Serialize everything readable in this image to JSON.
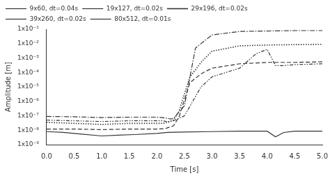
{
  "chart_data": {
    "type": "line",
    "log": "y",
    "x_label": "Time [s]",
    "y_label": "Amplitude [m]",
    "xlim": [
      0.0,
      5.0
    ],
    "ylim": [
      1e-09,
      0.1
    ],
    "xticks": [
      {
        "value": 0.0,
        "label": "0.0"
      },
      0.5,
      {
        "value": 1.0,
        "label": "1.0"
      },
      1.5,
      {
        "value": 2.0,
        "label": "2.0"
      },
      2.5,
      {
        "value": 3.0,
        "label": "3.0"
      },
      3.5,
      {
        "value": 4.0,
        "label": "4.0"
      },
      4.5,
      {
        "value": 5.0,
        "label": "5.0"
      }
    ],
    "yticks": [
      {
        "value": 1e-09,
        "label": "1x10⁻⁹"
      },
      {
        "value": 1e-08,
        "label": "1x10⁻⁸"
      },
      {
        "value": 1e-07,
        "label": "1x10⁻⁷"
      },
      {
        "value": 1e-06,
        "label": "1x10⁻⁶"
      },
      {
        "value": 1e-05,
        "label": "1x10⁻⁵"
      },
      {
        "value": 0.0001,
        "label": "1x10⁻⁴"
      },
      {
        "value": 0.001,
        "label": "1x10⁻³"
      },
      {
        "value": 0.01,
        "label": "1x10⁻²"
      },
      {
        "value": 0.1,
        "label": "1x10⁻¹"
      }
    ],
    "grid": false,
    "legend": "upper left",
    "series": [
      {
        "name": "9x60, dt=0.04s",
        "color": "#333333",
        "line_style": "solid",
        "x": [
          0.0,
          0.3,
          0.6,
          1.0,
          1.3,
          1.6,
          2.0,
          2.2,
          2.5,
          3.0,
          3.5,
          4.0,
          4.15,
          4.3,
          4.5,
          5.0
        ],
        "values": [
          8e-09,
          7e-09,
          5.5e-09,
          4e-09,
          4.5e-09,
          5e-09,
          6e-09,
          7e-09,
          7.5e-09,
          8e-09,
          8.5e-09,
          8.5e-09,
          3.5e-09,
          7e-09,
          8.5e-09,
          8.5e-09
        ]
      },
      {
        "name": "19x127, dt=0.02s",
        "color": "#333333",
        "line_style": "dashed",
        "x": [
          0.0,
          0.5,
          1.0,
          1.5,
          2.0,
          2.15,
          2.2,
          2.3,
          2.4,
          2.6,
          2.8,
          3.0,
          3.5,
          4.0,
          4.5,
          5.0
        ],
        "values": [
          1.2e-08,
          1.2e-08,
          1.1e-08,
          1.2e-08,
          1.2e-08,
          1.3e-08,
          1.5e-08,
          2e-08,
          8e-08,
          2e-05,
          8e-05,
          0.0002,
          0.0004,
          0.0005,
          0.0005,
          0.00055
        ]
      },
      {
        "name": "29x196, dt=0.02s",
        "color": "#333333",
        "line_style": "dotted",
        "x": [
          0.0,
          0.5,
          1.0,
          1.5,
          2.0,
          2.1,
          2.15,
          2.2,
          2.3,
          2.4,
          2.6,
          2.8,
          3.0,
          3.5,
          4.0,
          4.5,
          5.0
        ],
        "values": [
          3.5e-08,
          3e-08,
          2.5e-08,
          3e-08,
          3e-08,
          3e-08,
          3.2e-08,
          3.5e-08,
          5e-08,
          2e-07,
          5e-05,
          0.0005,
          0.003,
          0.007,
          0.008,
          0.0085,
          0.009
        ]
      },
      {
        "name": "39x260, dt=0.02s",
        "color": "#333333",
        "line_style": "dashdot",
        "x": [
          0.0,
          0.5,
          1.0,
          1.5,
          2.0,
          2.1,
          2.15,
          2.2,
          2.25,
          2.3,
          2.5,
          2.7,
          3.0,
          3.5,
          4.0,
          4.5,
          5.0
        ],
        "values": [
          9e-08,
          8.5e-08,
          7.5e-08,
          8e-08,
          8e-08,
          7.5e-08,
          7e-08,
          6.5e-08,
          6e-08,
          6.5e-08,
          5e-07,
          0.005,
          0.04,
          0.07,
          0.075,
          0.08,
          0.08
        ]
      },
      {
        "name": "80x512, dt=0.01s",
        "color": "#333333",
        "line_style": "dashdotdot",
        "x": [
          0.0,
          0.5,
          1.0,
          1.5,
          2.0,
          2.1,
          2.15,
          2.2,
          2.3,
          2.5,
          2.8,
          3.0,
          3.5,
          3.8,
          4.0,
          4.15,
          4.3,
          4.5,
          5.0
        ],
        "values": [
          5e-08,
          4.5e-08,
          4e-08,
          4.5e-08,
          4.5e-08,
          4.5e-08,
          4.2e-08,
          4e-08,
          4.5e-08,
          1e-07,
          1e-05,
          5e-05,
          0.0002,
          0.002,
          0.004,
          0.0003,
          0.0003,
          0.00035,
          0.0004
        ]
      }
    ]
  }
}
